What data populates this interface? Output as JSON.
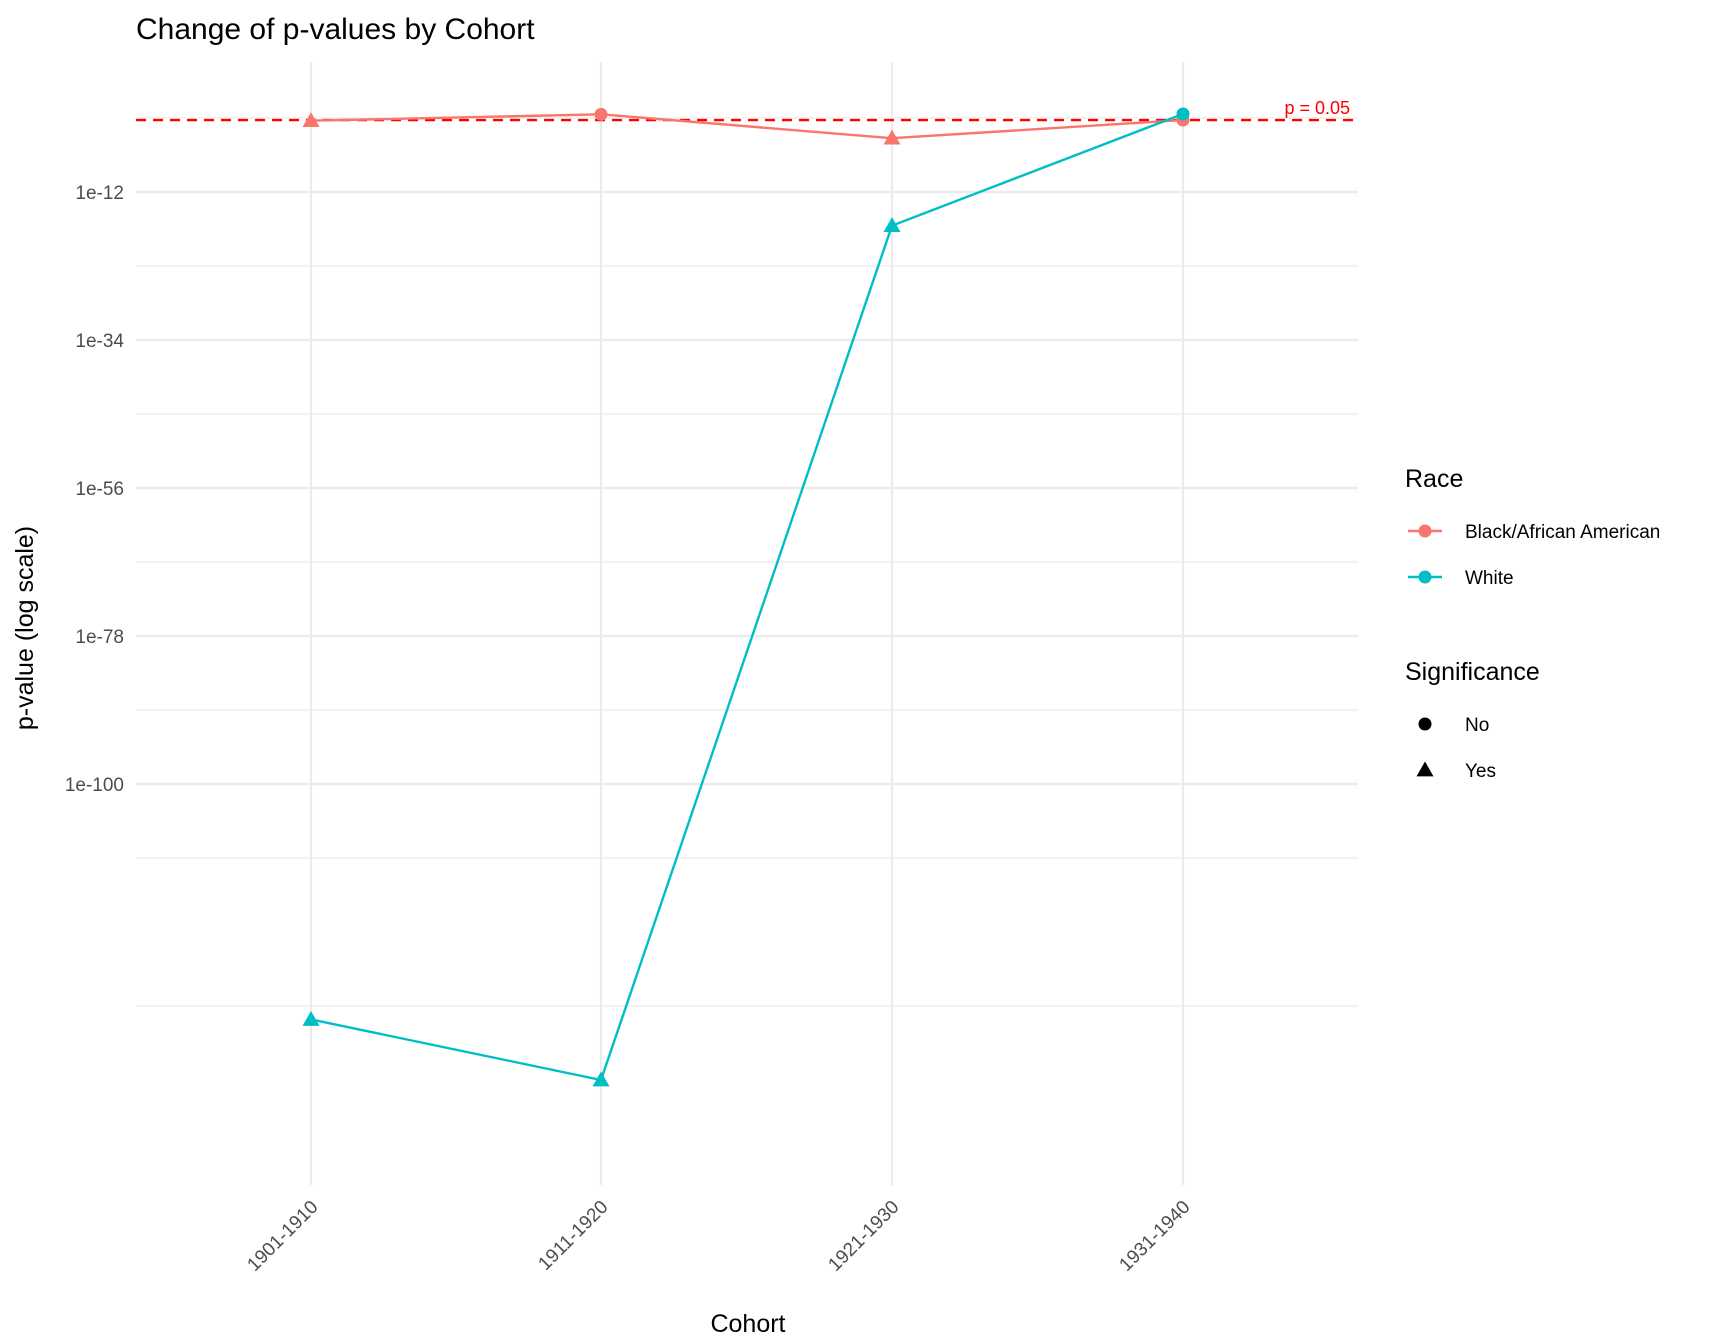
{
  "chart_data": {
    "type": "line",
    "title": "Change of p-values by Cohort",
    "xlabel": "Cohort",
    "ylabel": "p-value (log scale)",
    "y_scale": "log10",
    "ylim": [
      1e-160,
      0.1
    ],
    "y_ticks": [
      {
        "exp": -12,
        "label": "1e-12"
      },
      {
        "exp": -34,
        "label": "1e-34"
      },
      {
        "exp": -56,
        "label": "1e-56"
      },
      {
        "exp": -78,
        "label": "1e-78"
      },
      {
        "exp": -100,
        "label": "1e-100"
      }
    ],
    "y_minor_exps": [
      -1,
      -23,
      -45,
      -67,
      -89,
      -111,
      -133
    ],
    "categories": [
      "1901-1910",
      "1911-1920",
      "1921-1930",
      "1931-1940"
    ],
    "grid": true,
    "legend_position": "right",
    "reference_line": {
      "value": 0.05,
      "label": "p = 0.05",
      "color": "#ff0000"
    },
    "series": [
      {
        "name": "Black/African American",
        "color": "#f8766d",
        "values": [
          0.04,
          0.35,
          0.0001,
          0.05
        ],
        "significance": [
          "Yes",
          "No",
          "Yes",
          "No"
        ]
      },
      {
        "name": "White",
        "color": "#00bfc4",
        "values": [
          1e-135,
          1e-144,
          1e-17,
          0.4
        ],
        "significance": [
          "Yes",
          "Yes",
          "Yes",
          "No"
        ]
      }
    ],
    "legends": [
      {
        "title": "Race",
        "entries": [
          "Black/African American",
          "White"
        ]
      },
      {
        "title": "Significance",
        "entries": [
          "No",
          "Yes"
        ]
      }
    ]
  }
}
